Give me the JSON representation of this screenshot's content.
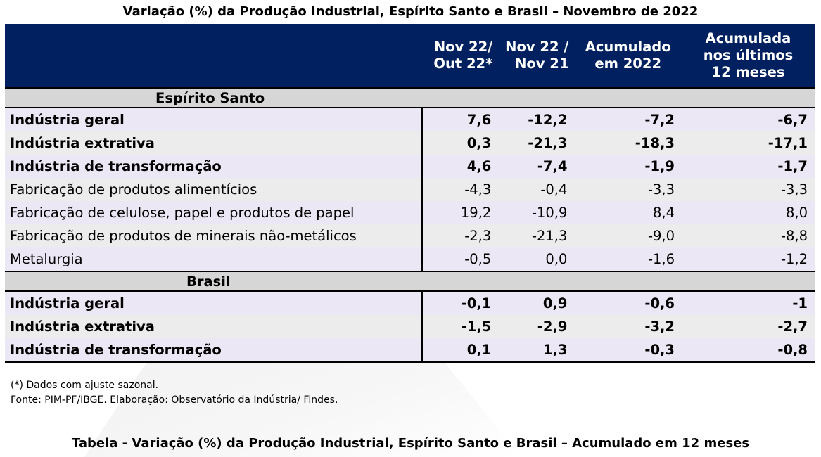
{
  "title_top": "Variação (%) da Produção Industrial, Espírito Santo e Brasil –  Novembro de 2022",
  "headers": {
    "col1_line1": "Nov 22/",
    "col1_line2": "Out 22*",
    "col2_line1": "Nov 22 /",
    "col2_line2": "Nov 21",
    "col3_line1": "Acumulado",
    "col3_line2": "em 2022",
    "col4_line1": "Acumulada",
    "col4_line2": "nos últimos",
    "col4_line3": "12 meses"
  },
  "es": {
    "section": "Espírito Santo",
    "rows": [
      {
        "label": "Indústria geral",
        "v1": "7,6",
        "v2": "-12,2",
        "v3": "-7,2",
        "v4": "-6,7"
      },
      {
        "label": "Indústria extrativa",
        "v1": "0,3",
        "v2": "-21,3",
        "v3": "-18,3",
        "v4": "-17,1"
      },
      {
        "label": "Indústria de transformação",
        "v1": "4,6",
        "v2": "-7,4",
        "v3": "-1,9",
        "v4": "-1,7"
      },
      {
        "label": "Fabricação de produtos alimentícios",
        "v1": "-4,3",
        "v2": "-0,4",
        "v3": "-3,3",
        "v4": "-3,3"
      },
      {
        "label": "Fabricação de celulose, papel e produtos de papel",
        "v1": "19,2",
        "v2": "-10,9",
        "v3": "8,4",
        "v4": "8,0"
      },
      {
        "label": "Fabricação de produtos de minerais não-metálicos",
        "v1": "-2,3",
        "v2": "-21,3",
        "v3": "-9,0",
        "v4": "-8,8"
      },
      {
        "label": "Metalurgia",
        "v1": "-0,5",
        "v2": "0,0",
        "v3": "-1,6",
        "v4": "-1,2"
      }
    ]
  },
  "br": {
    "section": "Brasil",
    "rows": [
      {
        "label": "Indústria geral",
        "v1": "-0,1",
        "v2": "0,9",
        "v3": "-0,6",
        "v4": "-1"
      },
      {
        "label": "Indústria extrativa",
        "v1": "-1,5",
        "v2": "-2,9",
        "v3": "-3,2",
        "v4": "-2,7"
      },
      {
        "label": "Indústria de transformação",
        "v1": "0,1",
        "v2": "1,3",
        "v3": "-0,3",
        "v4": "-0,8"
      }
    ]
  },
  "notes": {
    "note1": "(*) Dados com ajuste sazonal.",
    "note2": "Fonte: PIM-PF/IBGE. Elaboração: Observatório da Indústria/ Findes."
  },
  "title_bottom": "Tabela - Variação (%) da Produção Industrial, Espírito Santo e Brasil –  Acumulado em 12 meses"
}
